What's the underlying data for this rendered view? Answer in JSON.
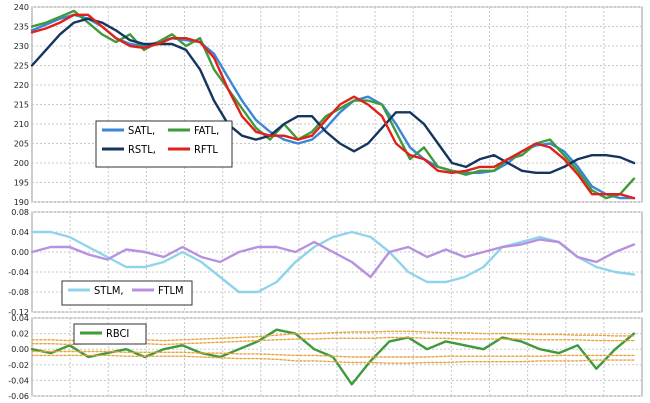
{
  "chart_data": [
    {
      "type": "line",
      "panel": "price",
      "ylim": [
        190,
        240
      ],
      "yticks": [
        "240",
        "235",
        "230",
        "225",
        "220",
        "215",
        "210",
        "205",
        "200",
        "195",
        "190"
      ],
      "grid": true,
      "legend_position": "bottom-left",
      "series": [
        {
          "name": "SATL,",
          "color": "#3a86d8",
          "values": [
            234,
            235.5,
            237,
            238,
            237,
            235,
            232,
            230.5,
            230,
            231,
            232,
            231.5,
            231,
            228,
            222,
            216,
            211,
            208,
            206,
            205,
            206,
            209,
            213,
            216,
            217,
            215,
            210,
            204,
            201,
            199,
            198,
            197.5,
            197.5,
            198,
            200,
            203,
            204.5,
            205,
            203,
            199,
            194,
            192,
            191,
            191
          ]
        },
        {
          "name": "FATL,",
          "color": "#3e9a3a",
          "values": [
            235,
            236,
            237.5,
            239,
            236,
            233,
            231,
            233,
            229,
            231,
            233,
            230,
            232,
            224,
            219,
            214,
            209,
            206,
            210,
            206,
            208,
            212,
            214,
            216,
            216,
            215,
            208,
            201,
            204,
            199,
            198,
            197,
            198,
            198,
            201,
            202,
            205,
            206,
            202,
            198,
            193,
            191,
            192,
            196
          ]
        },
        {
          "name": "RSTL,",
          "color": "#14355e",
          "values": [
            225,
            229,
            233,
            236,
            237,
            236,
            234,
            231.5,
            230.5,
            230.5,
            230.5,
            229,
            224,
            216,
            210,
            207,
            206,
            207,
            210,
            212,
            212,
            208,
            205,
            203,
            205,
            209,
            213,
            213,
            210,
            205,
            200,
            199,
            201,
            202,
            200,
            198,
            197.5,
            197.5,
            199,
            201,
            202,
            202,
            201.5,
            200
          ]
        },
        {
          "name": "RFTL",
          "color": "#e0211b",
          "values": [
            233.5,
            234.5,
            236,
            238,
            238,
            235,
            232,
            230,
            229.5,
            230.5,
            232,
            232,
            231,
            227,
            219,
            212,
            208,
            207,
            207,
            206,
            207,
            211,
            215,
            217,
            215,
            212,
            205,
            202,
            201,
            198,
            197.5,
            198,
            199,
            199,
            201,
            203,
            205,
            204,
            201,
            197,
            192,
            192,
            192,
            191
          ]
        }
      ]
    },
    {
      "type": "line",
      "panel": "momentum",
      "ylim": [
        -0.12,
        0.08
      ],
      "yticks": [
        "0.08",
        "0.04",
        "0.00",
        "-0.04",
        "-0.08",
        "-0.12"
      ],
      "grid": true,
      "legend_position": "bottom-left",
      "series": [
        {
          "name": "STLM,",
          "color": "#8fd4ea",
          "values": [
            0.04,
            0.04,
            0.03,
            0.01,
            -0.01,
            -0.03,
            -0.03,
            -0.02,
            0.0,
            -0.02,
            -0.05,
            -0.08,
            -0.08,
            -0.06,
            -0.02,
            0.01,
            0.03,
            0.04,
            0.03,
            0.0,
            -0.04,
            -0.06,
            -0.06,
            -0.05,
            -0.03,
            0.01,
            0.02,
            0.03,
            0.02,
            -0.01,
            -0.03,
            -0.04,
            -0.045
          ]
        },
        {
          "name": "FTLM",
          "color": "#b791e0",
          "values": [
            0.0,
            0.01,
            0.01,
            -0.005,
            -0.015,
            0.005,
            0.0,
            -0.01,
            0.01,
            -0.01,
            -0.02,
            0.0,
            0.01,
            0.01,
            0.0,
            0.02,
            0.0,
            -0.02,
            -0.05,
            0.0,
            0.01,
            -0.01,
            0.005,
            -0.01,
            0.0,
            0.01,
            0.015,
            0.025,
            0.02,
            -0.01,
            -0.02,
            0.0,
            0.015
          ]
        }
      ]
    },
    {
      "type": "line",
      "panel": "rbci",
      "ylim": [
        -0.06,
        0.04
      ],
      "yticks": [
        "0.04",
        "0.02",
        "0.00",
        "-0.02",
        "-0.04",
        "-0.06"
      ],
      "grid": true,
      "legend_position": "top-left",
      "series": [
        {
          "name": "RBCI",
          "color": "#3e9a3a",
          "values": [
            0.0,
            -0.005,
            0.005,
            -0.01,
            -0.005,
            0.0,
            -0.01,
            0.0,
            0.005,
            -0.005,
            -0.01,
            0.0,
            0.01,
            0.025,
            0.02,
            0.0,
            -0.01,
            -0.045,
            -0.015,
            0.01,
            0.015,
            0.0,
            0.01,
            0.005,
            0.0,
            0.015,
            0.01,
            0.0,
            -0.005,
            0.005,
            -0.025,
            0.0,
            0.02
          ]
        },
        {
          "name": "",
          "color": "#e8a23a",
          "dashed": true,
          "values": [
            0.012,
            0.012,
            0.011,
            0.012,
            0.011,
            0.012,
            0.012,
            0.011,
            0.012,
            0.013,
            0.014,
            0.015,
            0.016,
            0.018,
            0.02,
            0.02,
            0.021,
            0.022,
            0.022,
            0.023,
            0.023,
            0.022,
            0.021,
            0.021,
            0.02,
            0.02,
            0.02,
            0.019,
            0.019,
            0.018,
            0.018,
            0.017,
            0.017
          ]
        },
        {
          "name": "",
          "color": "#e8a23a",
          "dashed": true,
          "values": [
            0.007,
            0.007,
            0.006,
            0.007,
            0.007,
            0.007,
            0.007,
            0.006,
            0.007,
            0.008,
            0.009,
            0.01,
            0.011,
            0.012,
            0.013,
            0.013,
            0.014,
            0.014,
            0.014,
            0.015,
            0.015,
            0.014,
            0.014,
            0.013,
            0.013,
            0.013,
            0.013,
            0.012,
            0.012,
            0.012,
            0.011,
            0.011,
            0.011
          ]
        },
        {
          "name": "",
          "color": "#e8a23a",
          "dashed": true,
          "values": [
            -0.003,
            -0.003,
            -0.003,
            -0.003,
            -0.003,
            -0.004,
            -0.004,
            -0.004,
            -0.004,
            -0.005,
            -0.005,
            -0.006,
            -0.006,
            -0.007,
            -0.008,
            -0.008,
            -0.009,
            -0.01,
            -0.01,
            -0.01,
            -0.01,
            -0.01,
            -0.009,
            -0.009,
            -0.009,
            -0.009,
            -0.009,
            -0.009,
            -0.008,
            -0.008,
            -0.008,
            -0.008,
            -0.008
          ]
        },
        {
          "name": "",
          "color": "#e8a23a",
          "dashed": true,
          "values": [
            -0.008,
            -0.008,
            -0.008,
            -0.008,
            -0.008,
            -0.009,
            -0.009,
            -0.009,
            -0.009,
            -0.01,
            -0.011,
            -0.012,
            -0.012,
            -0.013,
            -0.015,
            -0.015,
            -0.016,
            -0.017,
            -0.017,
            -0.018,
            -0.018,
            -0.017,
            -0.017,
            -0.016,
            -0.016,
            -0.016,
            -0.016,
            -0.015,
            -0.015,
            -0.015,
            -0.014,
            -0.014,
            -0.014
          ]
        }
      ]
    }
  ]
}
